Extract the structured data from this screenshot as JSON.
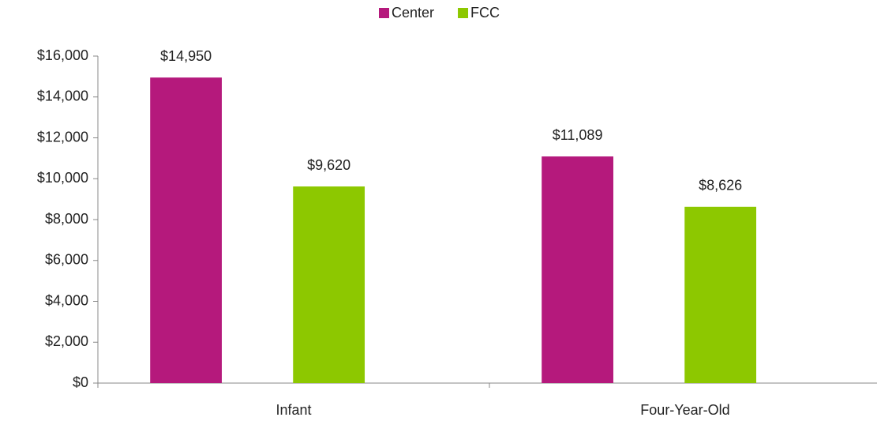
{
  "chart_data": {
    "type": "bar",
    "categories": [
      "Infant",
      "Four-Year-Old"
    ],
    "series": [
      {
        "name": "Center",
        "color": "#b5197c",
        "values": [
          14950,
          11089
        ],
        "value_labels": [
          "$14,950",
          "$11,089"
        ]
      },
      {
        "name": "FCC",
        "color": "#8dc800",
        "values": [
          9620,
          8626
        ],
        "value_labels": [
          "$9,620",
          "$8,626"
        ]
      }
    ],
    "ylim": [
      0,
      16000
    ],
    "yticks": [
      {
        "value": 0,
        "label": "$0"
      },
      {
        "value": 2000,
        "label": "$2,000"
      },
      {
        "value": 4000,
        "label": "$4,000"
      },
      {
        "value": 6000,
        "label": "$6,000"
      },
      {
        "value": 8000,
        "label": "$8,000"
      },
      {
        "value": 10000,
        "label": "$10,000"
      },
      {
        "value": 12000,
        "label": "$12,000"
      },
      {
        "value": 14000,
        "label": "$14,000"
      },
      {
        "value": 16000,
        "label": "$16,000"
      }
    ],
    "legend": "top"
  }
}
